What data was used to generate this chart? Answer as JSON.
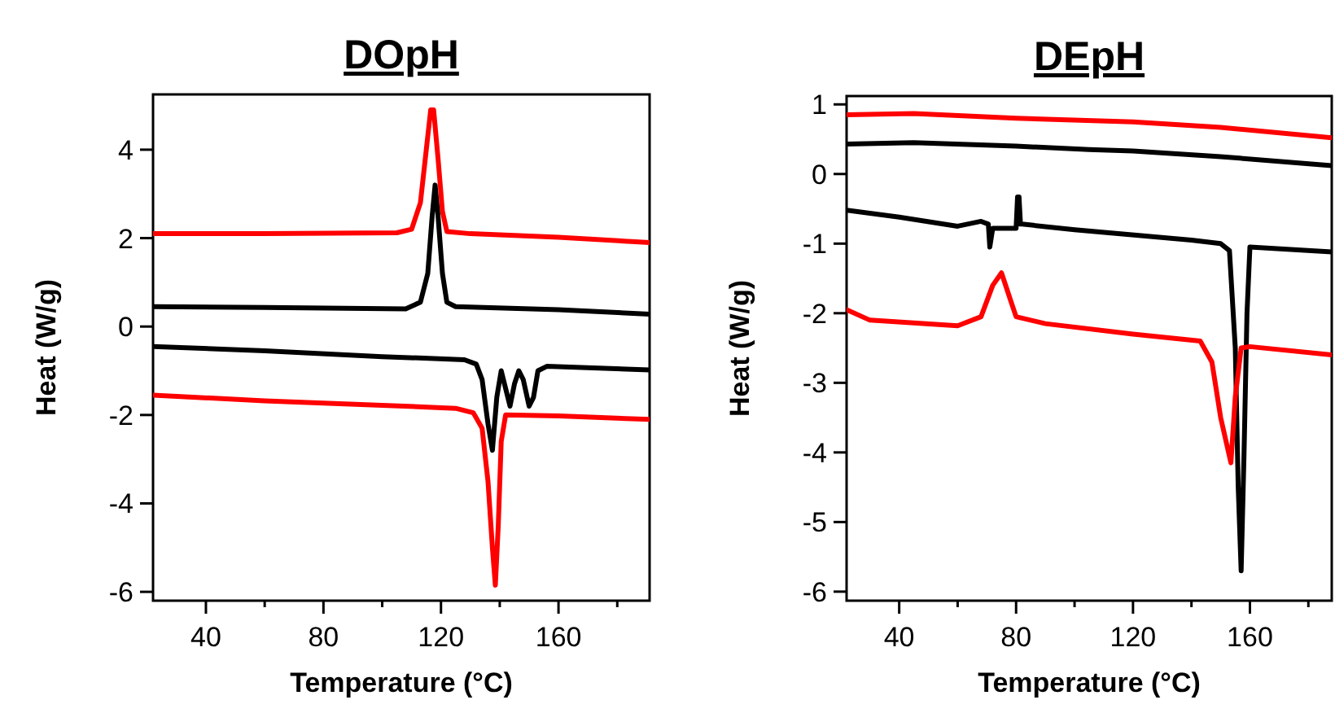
{
  "chart_data": [
    {
      "type": "line",
      "title": "DOpH",
      "xlabel": "Temperature (°C)",
      "ylabel": "Heat (W/g)",
      "xlim": [
        22,
        191
      ],
      "xticks": [
        40,
        {
          "value": 60,
          "label": null
        },
        80,
        {
          "value": 100,
          "label": null
        },
        120,
        {
          "value": 140,
          "label": null
        },
        160,
        {
          "value": 180,
          "label": null
        }
      ],
      "ylim": [
        -6.2,
        5.25
      ],
      "yticks": [
        -6,
        -4,
        -2,
        0,
        2,
        4
      ],
      "grid": false,
      "series": [
        {
          "color": "#ff0000",
          "x": [
            22,
            60,
            105,
            110,
            113,
            115,
            116.5,
            117.5,
            119,
            120.5,
            122,
            130,
            160,
            191
          ],
          "values": [
            2.1,
            2.1,
            2.12,
            2.2,
            2.8,
            4,
            4.9,
            4.9,
            3.8,
            2.6,
            2.15,
            2.1,
            2.02,
            1.9
          ]
        },
        {
          "color": "#000000",
          "x": [
            22,
            60,
            108,
            113,
            115.5,
            117,
            118,
            119,
            120.5,
            122,
            125,
            160,
            191
          ],
          "values": [
            0.45,
            0.43,
            0.4,
            0.55,
            1.2,
            2.5,
            3.2,
            2.5,
            1.2,
            0.55,
            0.45,
            0.38,
            0.28
          ]
        },
        {
          "color": "#000000",
          "x": [
            22,
            60,
            100,
            128,
            132,
            134,
            136,
            137.5,
            139,
            140.5,
            142,
            143.5,
            145,
            146.5,
            148,
            150,
            151.5,
            153,
            156,
            191
          ],
          "values": [
            -0.45,
            -0.55,
            -0.68,
            -0.75,
            -0.85,
            -1.2,
            -2.2,
            -2.8,
            -1.6,
            -1,
            -1.4,
            -1.8,
            -1.3,
            -1,
            -1.2,
            -1.8,
            -1.6,
            -1,
            -0.9,
            -0.98
          ]
        },
        {
          "color": "#ff0000",
          "x": [
            22,
            60,
            100,
            125,
            131,
            134,
            136,
            137.5,
            138.5,
            139.5,
            140.5,
            142,
            160,
            191
          ],
          "values": [
            -1.55,
            -1.68,
            -1.78,
            -1.85,
            -1.95,
            -2.3,
            -3.5,
            -5,
            -5.85,
            -4.5,
            -2.6,
            -2,
            -2.02,
            -2.1
          ]
        }
      ]
    },
    {
      "type": "line",
      "title": "DEpH",
      "xlabel": "Temperature (°C)",
      "ylabel": "Heat (W/g)",
      "xlim": [
        22,
        188
      ],
      "xticks": [
        40,
        {
          "value": 60,
          "label": null
        },
        80,
        {
          "value": 100,
          "label": null
        },
        120,
        {
          "value": 140,
          "label": null
        },
        160,
        {
          "value": 180,
          "label": null
        }
      ],
      "ylim": [
        -6.13,
        1.12
      ],
      "yticks": [
        -6,
        -5,
        -4,
        -3,
        -2,
        -1,
        0,
        1
      ],
      "grid": false,
      "series": [
        {
          "color": "#ff0000",
          "x": [
            22,
            45,
            80,
            120,
            150,
            188
          ],
          "values": [
            0.85,
            0.87,
            0.8,
            0.75,
            0.67,
            0.52
          ]
        },
        {
          "color": "#000000",
          "x": [
            22,
            45,
            80,
            105,
            120,
            150,
            188
          ],
          "values": [
            0.43,
            0.45,
            0.4,
            0.35,
            0.33,
            0.25,
            0.12
          ]
        },
        {
          "color": "#000000",
          "x": [
            22,
            40,
            60,
            68,
            70.5,
            71,
            72,
            80,
            80.5,
            81,
            81.5,
            82,
            100,
            140,
            150,
            153,
            155,
            156,
            157,
            158,
            159,
            160,
            188
          ],
          "values": [
            -0.52,
            -0.62,
            -0.75,
            -0.68,
            -0.72,
            -1.05,
            -0.78,
            -0.78,
            -0.33,
            -0.33,
            -0.72,
            -0.72,
            -0.8,
            -0.95,
            -1,
            -1.1,
            -2.5,
            -4.5,
            -5.7,
            -4,
            -2,
            -1.05,
            -1.12
          ]
        },
        {
          "color": "#ff0000",
          "x": [
            22,
            30,
            60,
            68,
            72,
            75,
            78,
            80,
            90,
            120,
            143,
            147,
            150,
            153.5,
            155,
            157,
            160,
            188
          ],
          "values": [
            -1.95,
            -2.1,
            -2.18,
            -2.05,
            -1.6,
            -1.42,
            -1.8,
            -2.05,
            -2.15,
            -2.3,
            -2.4,
            -2.7,
            -3.5,
            -4.15,
            -3.2,
            -2.5,
            -2.48,
            -2.6
          ]
        }
      ]
    }
  ]
}
